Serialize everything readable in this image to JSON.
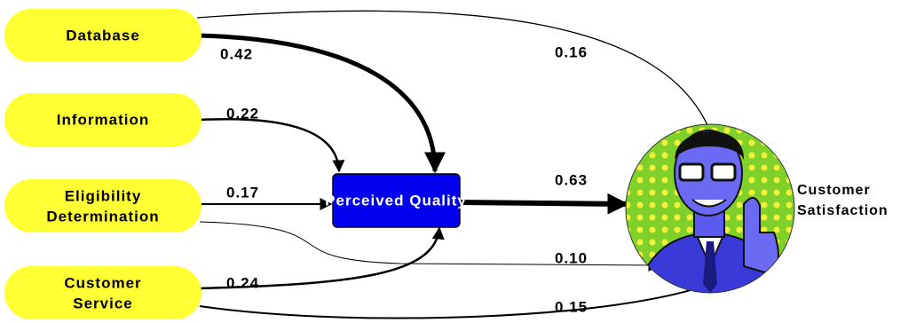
{
  "nodes": [
    {
      "lines": [
        "Database"
      ]
    },
    {
      "lines": [
        "Information"
      ]
    },
    {
      "lines": [
        "Eligibility",
        "Determination"
      ]
    },
    {
      "lines": [
        "Customer",
        "Service"
      ]
    },
    {
      "lines": [
        "Perceived Quality"
      ]
    },
    {
      "lines": [
        "Customer",
        "Satisfaction"
      ]
    }
  ],
  "edges": [
    {
      "label": "0.42"
    },
    {
      "label": "0.16"
    },
    {
      "label": "0.22"
    },
    {
      "label": "0.17"
    },
    {
      "label": "0.10"
    },
    {
      "label": "0.24"
    },
    {
      "label": "0.15"
    },
    {
      "label": "0.63"
    }
  ]
}
